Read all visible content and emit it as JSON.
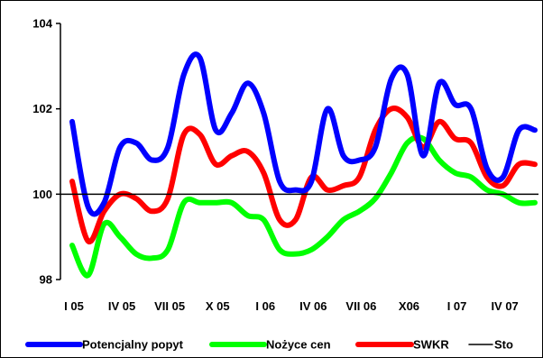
{
  "chart_data": {
    "type": "line",
    "title": "",
    "xlabel": "",
    "ylabel": "",
    "ylim": [
      98,
      104
    ],
    "yticks": [
      98,
      100,
      102,
      104
    ],
    "ytick_labels": [
      "98",
      "100",
      "102",
      "104"
    ],
    "xtick_labels": [
      "I 05",
      "IV 05",
      "VII 05",
      "X 05",
      "I 06",
      "IV 06",
      "VII 06",
      "X06",
      "I 07",
      "IV 07"
    ],
    "xtick_positions": [
      0,
      3,
      6,
      9,
      12,
      15,
      18,
      21,
      24,
      27
    ],
    "grid": false,
    "legend_position": "bottom",
    "x": [
      0,
      1,
      2,
      3,
      4,
      5,
      6,
      7,
      8,
      9,
      10,
      11,
      12,
      13,
      14,
      15,
      16,
      17,
      18,
      19,
      20,
      21,
      22,
      23,
      24,
      25,
      26,
      27,
      28,
      29
    ],
    "series": [
      {
        "name": "Potencjalny popyt",
        "color": "#0000ff",
        "values": [
          101.7,
          99.7,
          99.8,
          101.1,
          101.2,
          100.8,
          101.1,
          102.8,
          103.2,
          101.5,
          101.9,
          102.6,
          101.9,
          100.3,
          100.1,
          100.3,
          102.0,
          100.9,
          100.8,
          101.1,
          102.7,
          102.8,
          100.9,
          102.6,
          102.1,
          102.0,
          100.6,
          100.4,
          101.5,
          101.5
        ]
      },
      {
        "name": "Nożyce cen",
        "color": "#00ff00",
        "values": [
          98.8,
          98.1,
          99.3,
          99.0,
          98.6,
          98.5,
          98.7,
          99.8,
          99.8,
          99.8,
          99.8,
          99.5,
          99.4,
          98.7,
          98.6,
          98.7,
          99.0,
          99.4,
          99.6,
          99.9,
          100.5,
          101.2,
          101.3,
          100.8,
          100.5,
          100.4,
          100.1,
          100.0,
          99.8,
          99.8
        ]
      },
      {
        "name": "SWKR",
        "color": "#ff0000",
        "values": [
          100.3,
          98.9,
          99.6,
          100.0,
          99.9,
          99.6,
          99.9,
          101.4,
          101.4,
          100.7,
          100.9,
          101.0,
          100.5,
          99.4,
          99.4,
          100.4,
          100.1,
          100.2,
          100.4,
          101.5,
          102.0,
          101.8,
          101.1,
          101.7,
          101.3,
          101.2,
          100.4,
          100.2,
          100.7,
          100.7
        ]
      },
      {
        "name": "Sto",
        "color": "#000000",
        "values": [
          100,
          100,
          100,
          100,
          100,
          100,
          100,
          100,
          100,
          100,
          100,
          100,
          100,
          100,
          100,
          100,
          100,
          100,
          100,
          100,
          100,
          100,
          100,
          100,
          100,
          100,
          100,
          100,
          100,
          100
        ]
      }
    ]
  }
}
